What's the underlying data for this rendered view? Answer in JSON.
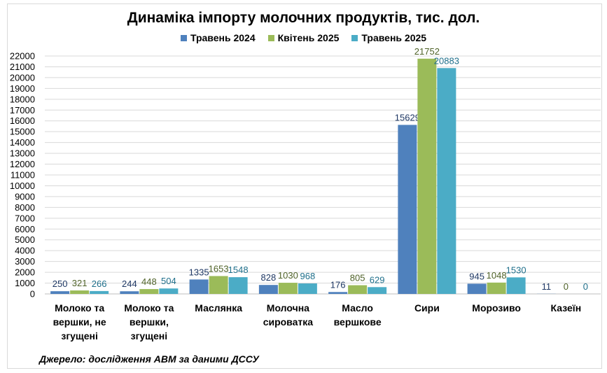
{
  "chart_data": {
    "type": "bar",
    "title": "Динаміка імпорту молочних продуктів, тис. дол.",
    "categories": [
      [
        "Молоко та",
        "вершки, не",
        "згущені"
      ],
      [
        "Молоко та",
        "вершки,",
        "згущені"
      ],
      [
        "Маслянка"
      ],
      [
        "Молочна",
        "сироватка"
      ],
      [
        "Масло",
        "вершкове"
      ],
      [
        "Сири"
      ],
      [
        "Морозиво"
      ],
      [
        "Казеїн"
      ]
    ],
    "series": [
      {
        "name": "Травень 2024",
        "color": "#4f81bd",
        "label_color": "#1f3864",
        "values": [
          250,
          244,
          1335,
          828,
          176,
          15629,
          945,
          11
        ]
      },
      {
        "name": "Квітень 2025",
        "color": "#9bbb59",
        "label_color": "#4f6228",
        "values": [
          321,
          448,
          1653,
          1030,
          805,
          21752,
          1048,
          0
        ]
      },
      {
        "name": "Травень 2025",
        "color": "#4bacc6",
        "label_color": "#1f6f8b",
        "values": [
          266,
          504,
          1548,
          968,
          629,
          20883,
          1530,
          0
        ]
      }
    ],
    "ylim": [
      0,
      22000
    ],
    "ytick_step": 1000,
    "grid": true,
    "legend_position": "top"
  },
  "source_note": "Джерело: дослідження АВМ за даними ДССУ"
}
